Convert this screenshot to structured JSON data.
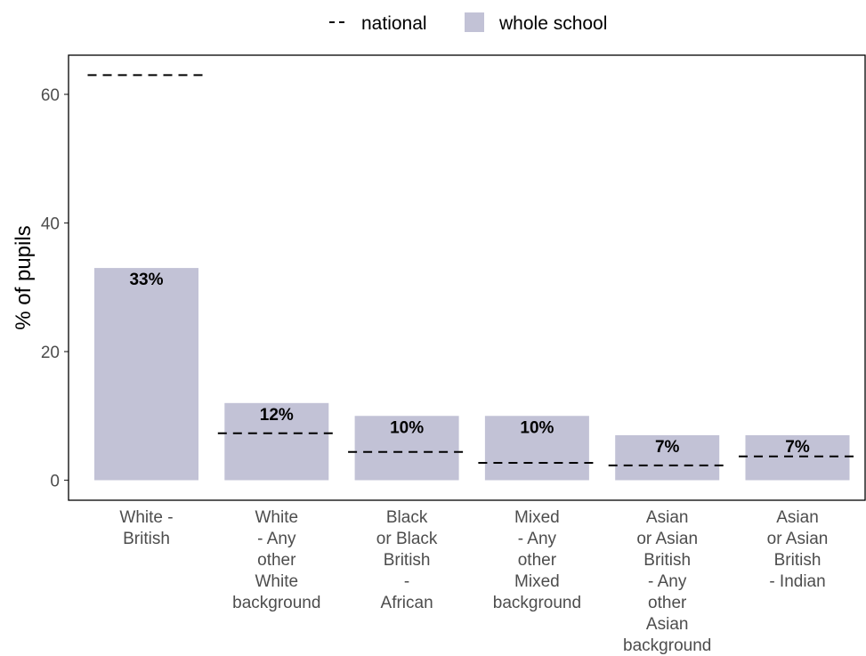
{
  "chart_data": {
    "type": "bar",
    "ylabel": "% of pupils",
    "ylim": [
      0,
      66
    ],
    "yticks": [
      0,
      20,
      40,
      60
    ],
    "grid": false,
    "legend_position": "top",
    "legend": {
      "national": "national",
      "whole_school": "whole school"
    },
    "categories": [
      [
        "White -",
        "British"
      ],
      [
        "White",
        "- Any",
        "other",
        "White",
        "background"
      ],
      [
        "Black",
        "or Black",
        "British",
        "-",
        "African"
      ],
      [
        "Mixed",
        "- Any",
        "other",
        "Mixed",
        "background"
      ],
      [
        "Asian",
        "or Asian",
        "British",
        "- Any",
        "other",
        "Asian",
        "background"
      ],
      [
        "Asian",
        "or Asian",
        "British",
        "- Indian"
      ]
    ],
    "series": [
      {
        "name": "whole school",
        "values": [
          33,
          12,
          10,
          10,
          7,
          7
        ],
        "labels": [
          "33%",
          "12%",
          "10%",
          "10%",
          "7%",
          "7%"
        ],
        "color": "#c2c2d6"
      },
      {
        "name": "national",
        "values": [
          63,
          7.3,
          4.4,
          2.7,
          2.3,
          3.7
        ],
        "style": "dashed",
        "color": "#000000"
      }
    ]
  }
}
